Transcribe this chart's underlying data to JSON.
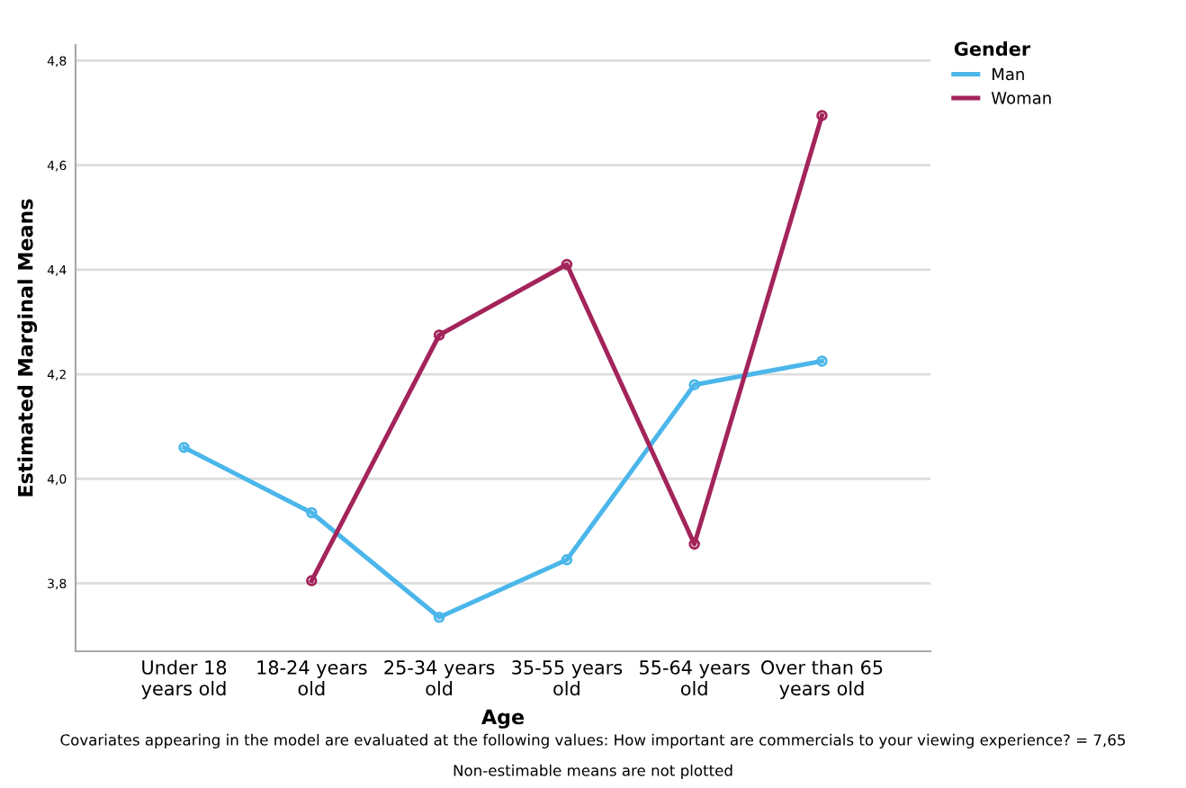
{
  "chart_data": {
    "type": "line",
    "xlabel": "Age",
    "ylabel": "Estimated Marginal Means",
    "legend_title": "Gender",
    "categories": [
      "Under 18\nyears old",
      "18-24 years\nold",
      "25-34 years\nold",
      "35-55 years\nold",
      "55-64 years\nold",
      "Over than 65\nyears old"
    ],
    "series": [
      {
        "name": "Man",
        "color": "#4bb6ea",
        "values": [
          4.06,
          3.935,
          3.735,
          3.845,
          4.18,
          4.225
        ]
      },
      {
        "name": "Woman",
        "color": "#a3245a",
        "values": [
          null,
          3.805,
          4.275,
          4.41,
          3.875,
          4.695
        ]
      }
    ],
    "ylim": [
      3.67,
      4.83
    ],
    "yticks": [
      {
        "value": 3.8,
        "label": "3,8"
      },
      {
        "value": 4.0,
        "label": "4,0"
      },
      {
        "value": 4.2,
        "label": "4,2"
      },
      {
        "value": 4.4,
        "label": "4,4"
      },
      {
        "value": 4.6,
        "label": "4,6"
      },
      {
        "value": 4.8,
        "label": "4,8"
      }
    ],
    "grid": "y",
    "legend": "top right",
    "marker": "circle",
    "line_style": "solid",
    "annotations": [
      "Covariates appearing in the model are evaluated at the following values: How important are commercials to your viewing experience? = 7,65",
      "Non-estimable means are not plotted"
    ]
  }
}
